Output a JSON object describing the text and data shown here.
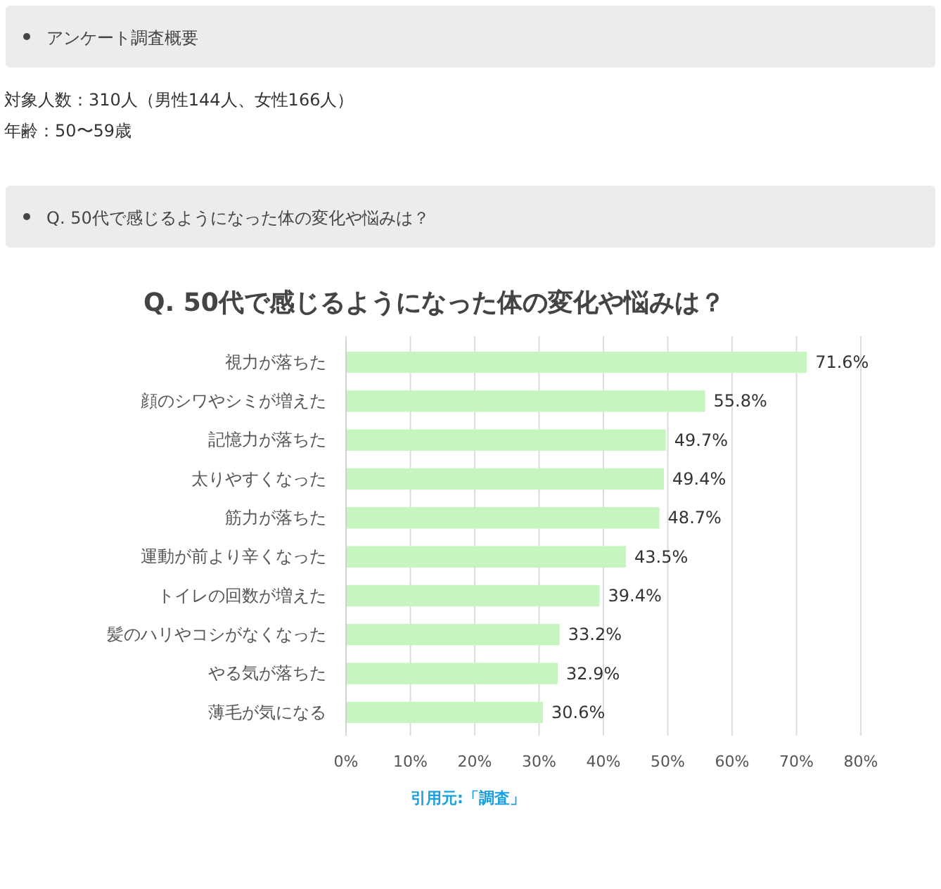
{
  "chart_data": {
    "type": "bar",
    "orientation": "horizontal",
    "title": "Q. 50代で感じるようになった体の変化や悩みは？",
    "categories": [
      "視力が落ちた",
      "顔のシワやシミが増えた",
      "記憶力が落ちた",
      "太りやすくなった",
      "筋力が落ちた",
      "運動が前より辛くなった",
      "トイレの回数が増えた",
      "髪のハリやコシがなくなった",
      "やる気が落ちた",
      "薄毛が気になる"
    ],
    "values": [
      71.6,
      55.8,
      49.7,
      49.4,
      48.7,
      43.5,
      39.4,
      33.2,
      32.9,
      30.6
    ],
    "value_labels": [
      "71.6%",
      "55.8%",
      "49.7%",
      "49.4%",
      "48.7%",
      "43.5%",
      "39.4%",
      "33.2%",
      "32.9%",
      "30.6%"
    ],
    "color": "#c6f5c0",
    "xlim": [
      0,
      80
    ],
    "xticks": [
      {
        "value": 0,
        "label": "0%"
      },
      {
        "value": 10,
        "label": "10%"
      },
      {
        "value": 20,
        "label": "20%"
      },
      {
        "value": 30,
        "label": "30%"
      },
      {
        "value": 40,
        "label": "40%"
      },
      {
        "value": 50,
        "label": "50%"
      },
      {
        "value": 60,
        "label": "60%"
      },
      {
        "value": 70,
        "label": "70%"
      },
      {
        "value": 80,
        "label": "80%"
      }
    ],
    "grid": "x",
    "annotations": [
      "アンケート調査概要",
      "対象人数：310人（男性144人、女性166人）",
      "年齢：50〜59歳",
      "Q. 50代で感じるようになった体の変化や悩みは？",
      "引用元:「調査」"
    ]
  }
}
